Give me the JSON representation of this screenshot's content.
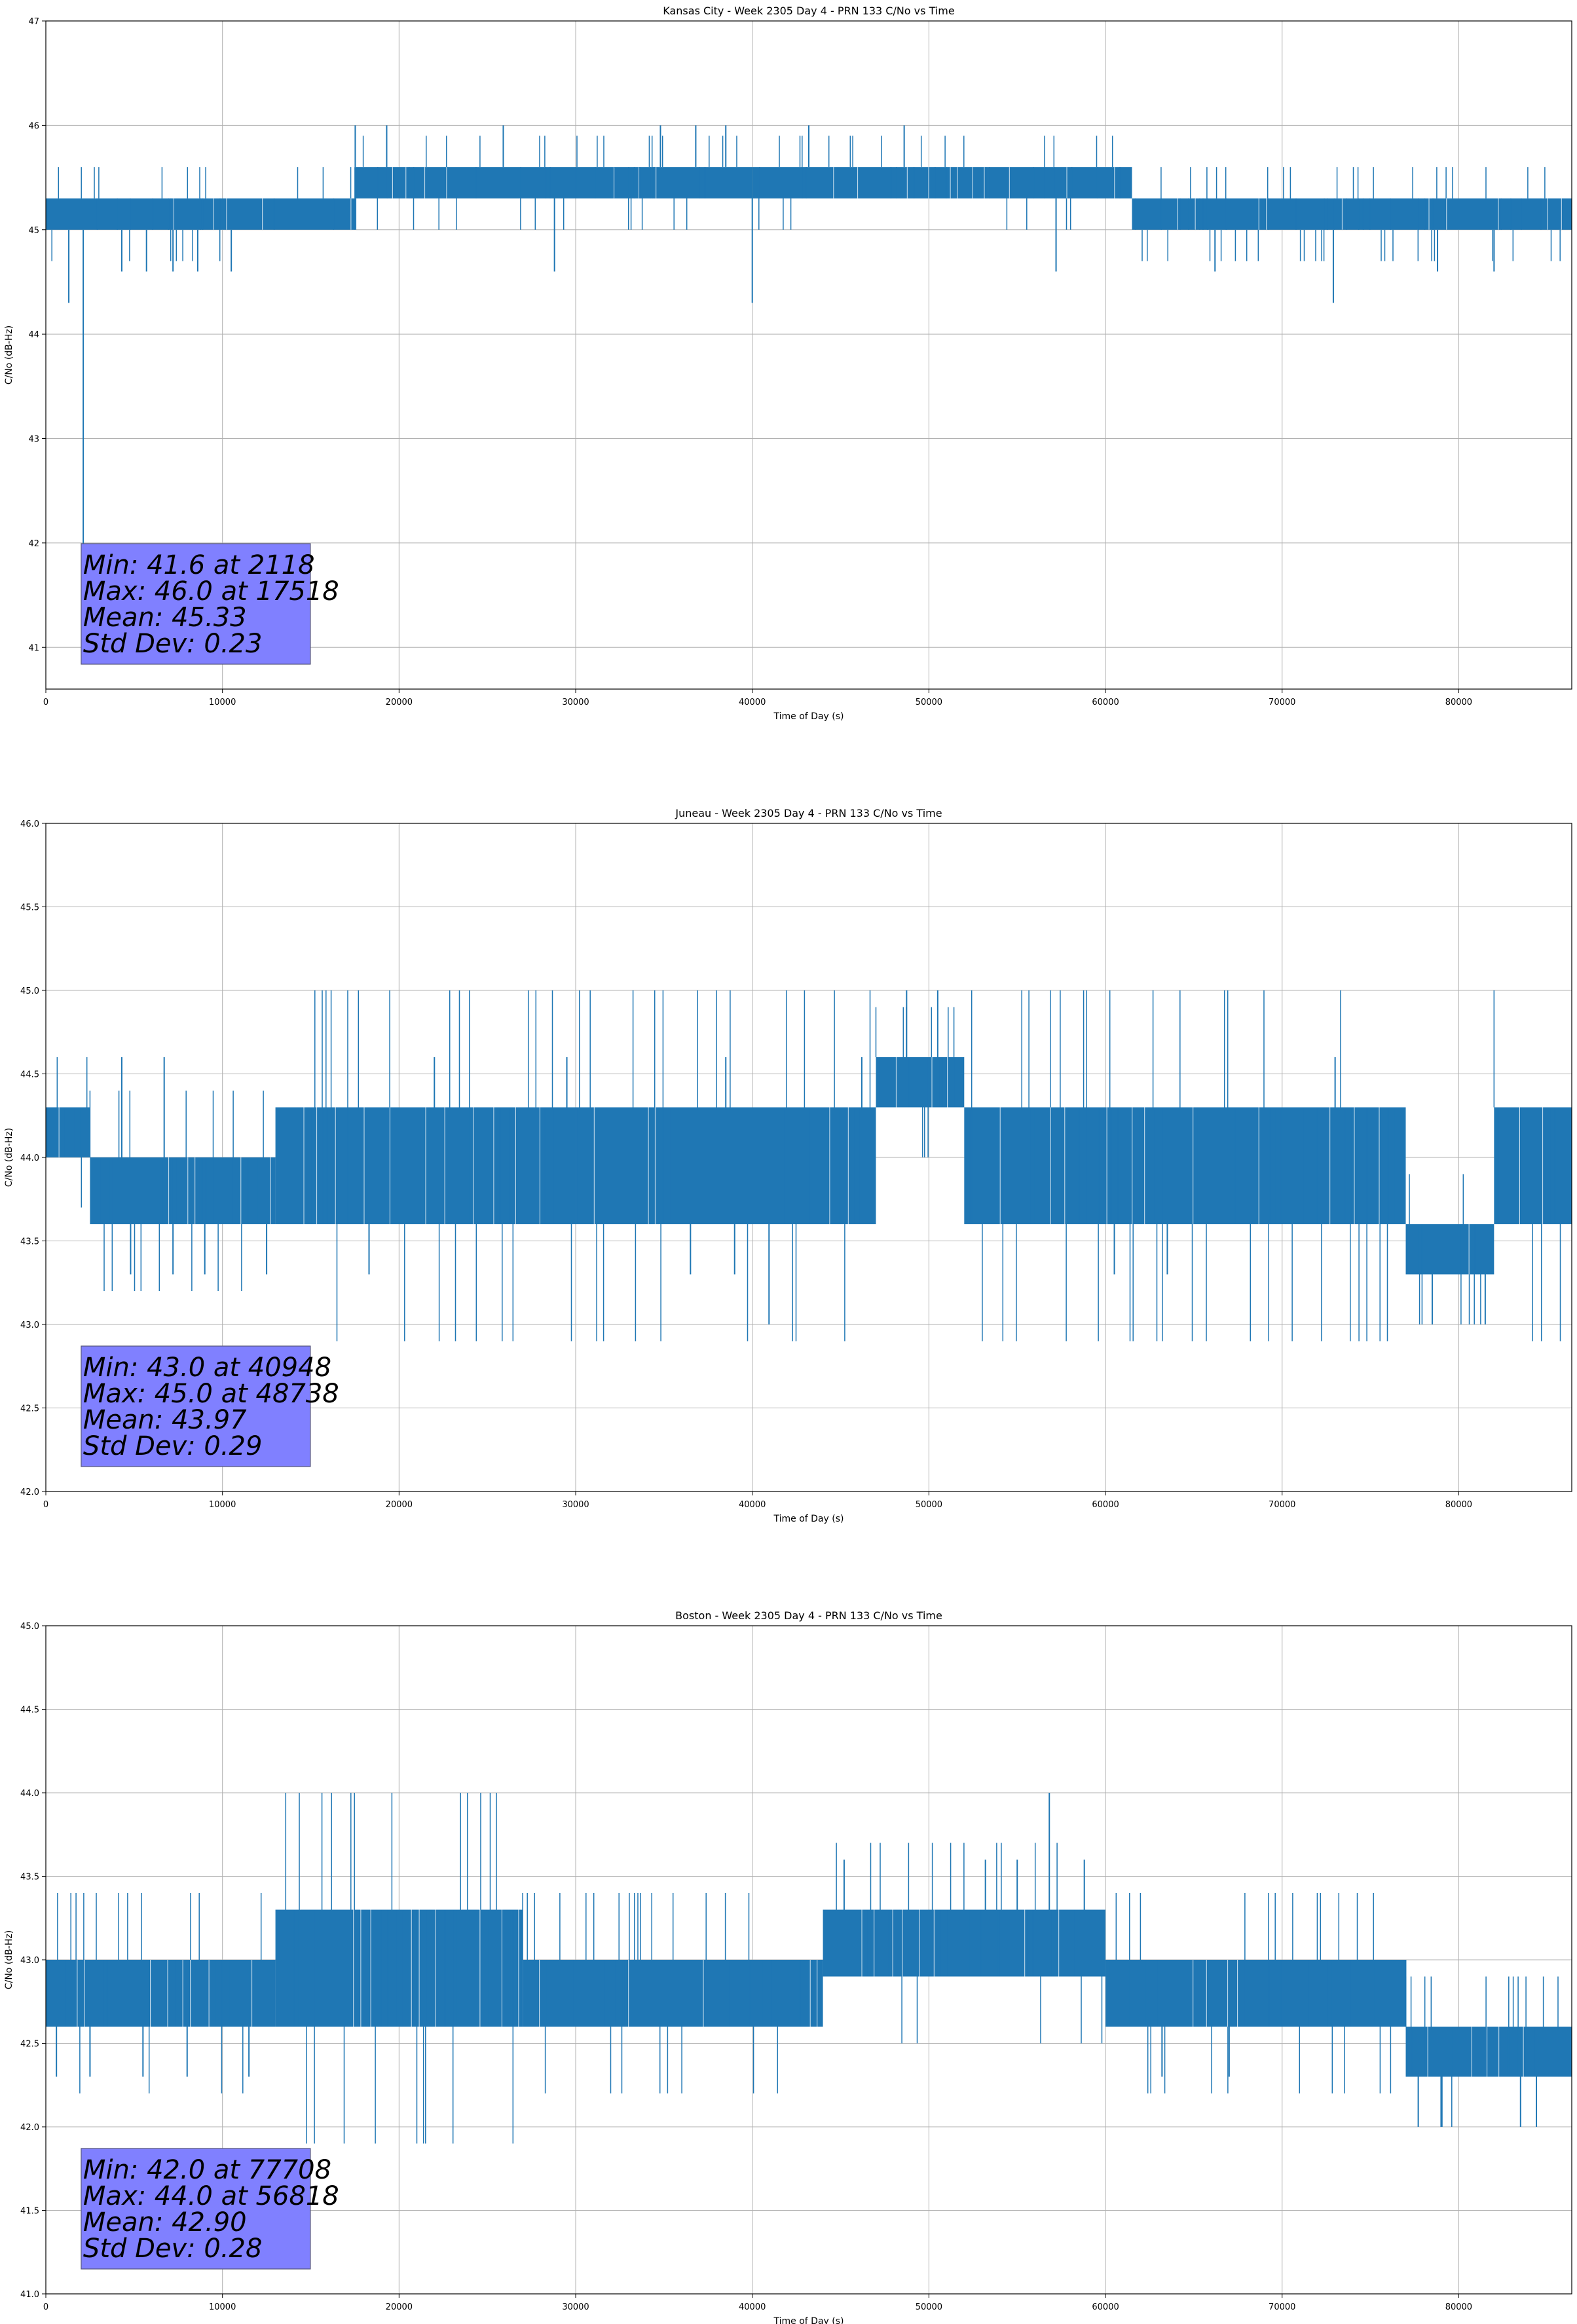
{
  "colors": {
    "series": "#1f77b4",
    "grid": "#b0b0b0",
    "statbox_fill": "#8080ff",
    "statbox_edge": "#555577"
  },
  "chart_data": [
    {
      "type": "line",
      "title": "Kansas City - Week 2305 Day 4 - PRN 133 C/No vs Time",
      "xlabel": "Time of Day (s)",
      "ylabel": "C/No (dB-Hz)",
      "xlim": [
        0,
        86400
      ],
      "ylim": [
        40.6,
        47
      ],
      "xticks": [
        0,
        10000,
        20000,
        30000,
        40000,
        50000,
        60000,
        70000,
        80000
      ],
      "yticks": [
        41,
        42,
        43,
        44,
        45,
        46,
        47
      ],
      "ytick_labels": [
        "41",
        "42",
        "43",
        "44",
        "45",
        "46",
        "47"
      ],
      "grid": true,
      "band_segments": [
        {
          "x": [
            0,
            17500
          ],
          "low": 45.0,
          "high": 45.3
        },
        {
          "x": [
            17500,
            33600
          ],
          "low": 45.3,
          "high": 45.6
        },
        {
          "x": [
            33600,
            40000
          ],
          "low": 45.3,
          "high": 45.6
        },
        {
          "x": [
            40000,
            61500
          ],
          "low": 45.3,
          "high": 45.6
        },
        {
          "x": [
            61500,
            86400
          ],
          "low": 45.0,
          "high": 45.3
        }
      ],
      "spikes": [
        {
          "x": 2118,
          "y": 41.6
        },
        {
          "x": 1300,
          "y": 44.3
        },
        {
          "x": 4300,
          "y": 44.6
        },
        {
          "x": 5700,
          "y": 44.6
        },
        {
          "x": 7200,
          "y": 44.6
        },
        {
          "x": 8600,
          "y": 44.6
        },
        {
          "x": 10500,
          "y": 44.6
        },
        {
          "x": 28800,
          "y": 44.6
        },
        {
          "x": 40000,
          "y": 44.3
        },
        {
          "x": 57200,
          "y": 44.6
        },
        {
          "x": 66200,
          "y": 44.6
        },
        {
          "x": 72900,
          "y": 44.3
        },
        {
          "x": 78800,
          "y": 44.6
        },
        {
          "x": 82000,
          "y": 44.6
        },
        {
          "x": 17518,
          "y": 46.0
        },
        {
          "x": 19300,
          "y": 46.0
        },
        {
          "x": 25900,
          "y": 46.0
        },
        {
          "x": 34800,
          "y": 46.0
        },
        {
          "x": 36800,
          "y": 46.0
        },
        {
          "x": 38500,
          "y": 46.0
        },
        {
          "x": 43200,
          "y": 46.0
        },
        {
          "x": 48600,
          "y": 46.0
        }
      ],
      "stats_lines": [
        "Min: 41.6 at 2118",
        "Max: 46.0 at 17518",
        "Mean: 45.33",
        "Std Dev: 0.23"
      ]
    },
    {
      "type": "line",
      "title": "Juneau - Week 2305 Day 4 - PRN 133 C/No vs Time",
      "xlabel": "Time of Day (s)",
      "ylabel": "C/No (dB-Hz)",
      "xlim": [
        0,
        86400
      ],
      "ylim": [
        42.0,
        46.0
      ],
      "xticks": [
        0,
        10000,
        20000,
        30000,
        40000,
        50000,
        60000,
        70000,
        80000
      ],
      "yticks": [
        42.0,
        42.5,
        43.0,
        43.5,
        44.0,
        44.5,
        45.0,
        45.5,
        46.0
      ],
      "ytick_labels": [
        "42.0",
        "42.5",
        "43.0",
        "43.5",
        "44.0",
        "44.5",
        "45.0",
        "45.5",
        "46.0"
      ],
      "grid": true,
      "band_segments": [
        {
          "x": [
            0,
            2500
          ],
          "low": 44.0,
          "high": 44.3
        },
        {
          "x": [
            2500,
            13000
          ],
          "low": 43.6,
          "high": 44.0
        },
        {
          "x": [
            13000,
            30000
          ],
          "low": 43.6,
          "high": 44.3
        },
        {
          "x": [
            30000,
            47000
          ],
          "low": 43.6,
          "high": 44.3
        },
        {
          "x": [
            47000,
            52000
          ],
          "low": 44.3,
          "high": 44.6
        },
        {
          "x": [
            52000,
            77000
          ],
          "low": 43.6,
          "high": 44.3
        },
        {
          "x": [
            77000,
            82000
          ],
          "low": 43.3,
          "high": 43.6
        },
        {
          "x": [
            82000,
            86400
          ],
          "low": 43.6,
          "high": 44.3
        }
      ],
      "spikes": [
        {
          "x": 40948,
          "y": 43.0
        },
        {
          "x": 4800,
          "y": 43.3
        },
        {
          "x": 7200,
          "y": 43.3
        },
        {
          "x": 9000,
          "y": 43.3
        },
        {
          "x": 12500,
          "y": 43.3
        },
        {
          "x": 18300,
          "y": 43.3
        },
        {
          "x": 36500,
          "y": 43.3
        },
        {
          "x": 39000,
          "y": 43.3
        },
        {
          "x": 60500,
          "y": 43.3
        },
        {
          "x": 63500,
          "y": 43.3
        },
        {
          "x": 78500,
          "y": 43.0
        },
        {
          "x": 81500,
          "y": 43.0
        },
        {
          "x": 48738,
          "y": 45.0
        },
        {
          "x": 50500,
          "y": 45.0
        },
        {
          "x": 4300,
          "y": 44.6
        },
        {
          "x": 6700,
          "y": 44.6
        },
        {
          "x": 22000,
          "y": 44.6
        },
        {
          "x": 29500,
          "y": 44.6
        },
        {
          "x": 38500,
          "y": 44.6
        },
        {
          "x": 46200,
          "y": 44.6
        },
        {
          "x": 73000,
          "y": 44.6
        }
      ],
      "stats_lines": [
        "Min: 43.0 at 40948",
        "Max: 45.0 at 48738",
        "Mean: 43.97",
        "Std Dev: 0.29"
      ]
    },
    {
      "type": "line",
      "title": "Boston - Week 2305 Day 4 - PRN 133 C/No vs Time",
      "xlabel": "Time of Day (s)",
      "ylabel": "C/No (dB-Hz)",
      "xlim": [
        0,
        86400
      ],
      "ylim": [
        41.0,
        45.0
      ],
      "xticks": [
        0,
        10000,
        20000,
        30000,
        40000,
        50000,
        60000,
        70000,
        80000
      ],
      "yticks": [
        41.0,
        41.5,
        42.0,
        42.5,
        43.0,
        43.5,
        44.0,
        44.5,
        45.0
      ],
      "ytick_labels": [
        "41.0",
        "41.5",
        "42.0",
        "42.5",
        "43.0",
        "43.5",
        "44.0",
        "44.5",
        "45.0"
      ],
      "grid": true,
      "band_segments": [
        {
          "x": [
            0,
            13000
          ],
          "low": 42.6,
          "high": 43.0
        },
        {
          "x": [
            13000,
            27000
          ],
          "low": 42.6,
          "high": 43.3
        },
        {
          "x": [
            27000,
            44000
          ],
          "low": 42.6,
          "high": 43.0
        },
        {
          "x": [
            44000,
            60000
          ],
          "low": 42.9,
          "high": 43.3
        },
        {
          "x": [
            60000,
            77000
          ],
          "low": 42.6,
          "high": 43.0
        },
        {
          "x": [
            77000,
            86400
          ],
          "low": 42.3,
          "high": 42.6
        }
      ],
      "spikes": [
        {
          "x": 77708,
          "y": 42.0
        },
        {
          "x": 79000,
          "y": 42.0
        },
        {
          "x": 83500,
          "y": 42.0
        },
        {
          "x": 84400,
          "y": 42.0
        },
        {
          "x": 600,
          "y": 42.3
        },
        {
          "x": 2500,
          "y": 42.3
        },
        {
          "x": 5500,
          "y": 42.3
        },
        {
          "x": 8000,
          "y": 42.3
        },
        {
          "x": 11500,
          "y": 42.3
        },
        {
          "x": 63200,
          "y": 42.3
        },
        {
          "x": 67000,
          "y": 42.3
        },
        {
          "x": 56818,
          "y": 44.0
        },
        {
          "x": 45200,
          "y": 43.6
        },
        {
          "x": 53200,
          "y": 43.6
        },
        {
          "x": 55000,
          "y": 43.6
        },
        {
          "x": 58800,
          "y": 43.6
        }
      ],
      "stats_lines": [
        "Min: 42.0 at 77708",
        "Max: 44.0 at 56818",
        "Mean: 42.90",
        "Std Dev: 0.28"
      ]
    }
  ]
}
